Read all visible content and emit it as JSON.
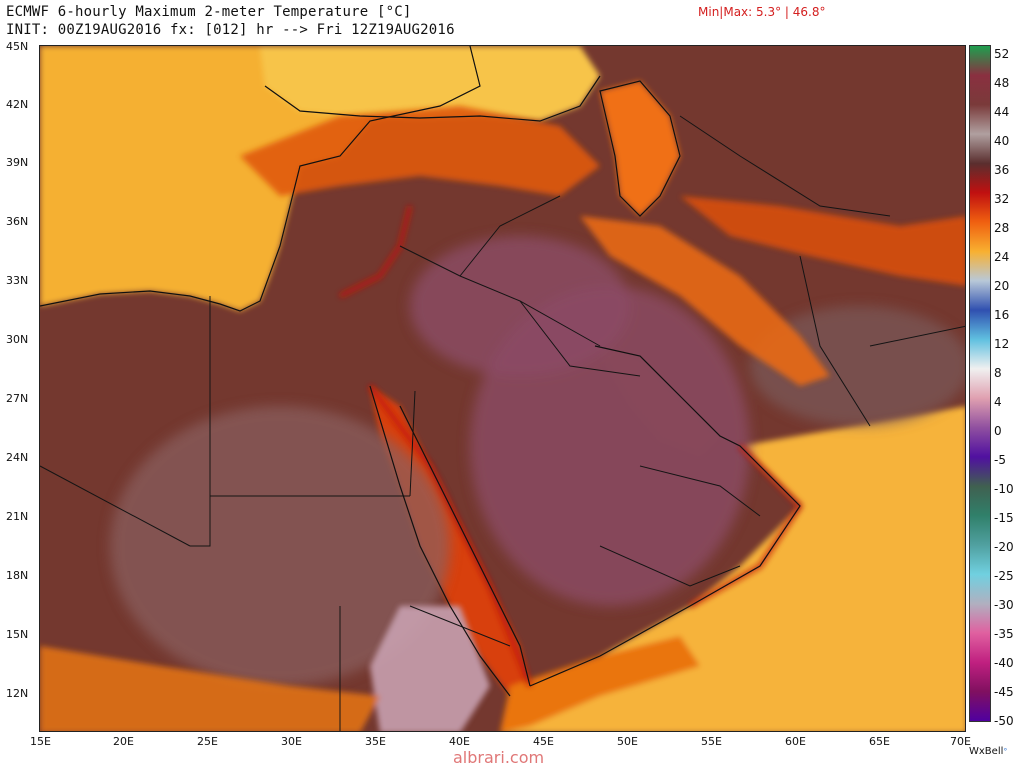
{
  "header": {
    "title_line": "ECMWF 6-hourly Maximum 2-meter Temperature [°C]",
    "init_line": "INIT: 00Z19AUG2016 fx: [012] hr --> Fri 12Z19AUG2016",
    "minmax": "Min|Max: 5.3° | 46.8°"
  },
  "map": {
    "lat_labels": [
      "45N",
      "42N",
      "39N",
      "36N",
      "33N",
      "30N",
      "27N",
      "24N",
      "21N",
      "18N",
      "15N",
      "12N"
    ],
    "lon_labels": [
      "15E",
      "20E",
      "25E",
      "30E",
      "35E",
      "40E",
      "45E",
      "50E",
      "55E",
      "60E",
      "65E",
      "70E"
    ],
    "colors": {
      "desert_maroon": "#7a3a3a",
      "hot_purple": "#8a4a6a",
      "orange": "#f07a10",
      "yellow_orange": "#f8b838",
      "sea_yellow": "#f6c542",
      "red": "#c01808",
      "brown": "#6a4038"
    }
  },
  "colorbar": {
    "labels": [
      "52",
      "48",
      "44",
      "40",
      "36",
      "32",
      "28",
      "24",
      "20",
      "16",
      "12",
      "8",
      "4",
      "0",
      "-5",
      "-10",
      "-15",
      "-20",
      "-25",
      "-30",
      "-35",
      "-40",
      "-45",
      "-50"
    ],
    "colors": [
      "#1f9f4f",
      "#8a3040",
      "#7a3a3a",
      "#b0a0a0",
      "#5a2e2e",
      "#c01010",
      "#f06010",
      "#f8b030",
      "#b8c8d8",
      "#3050b0",
      "#60c0e0",
      "#f0f0f0",
      "#e0a0b0",
      "#9050a0",
      "#5010a0",
      "#406050",
      "#30806a",
      "#50a0a0",
      "#70d0e0",
      "#b0b0c0",
      "#e060a0",
      "#c02080",
      "#801060",
      "#5000a0"
    ]
  },
  "credit": {
    "brand": "WxBell",
    "mark": "°"
  },
  "watermark": "albrari.com"
}
